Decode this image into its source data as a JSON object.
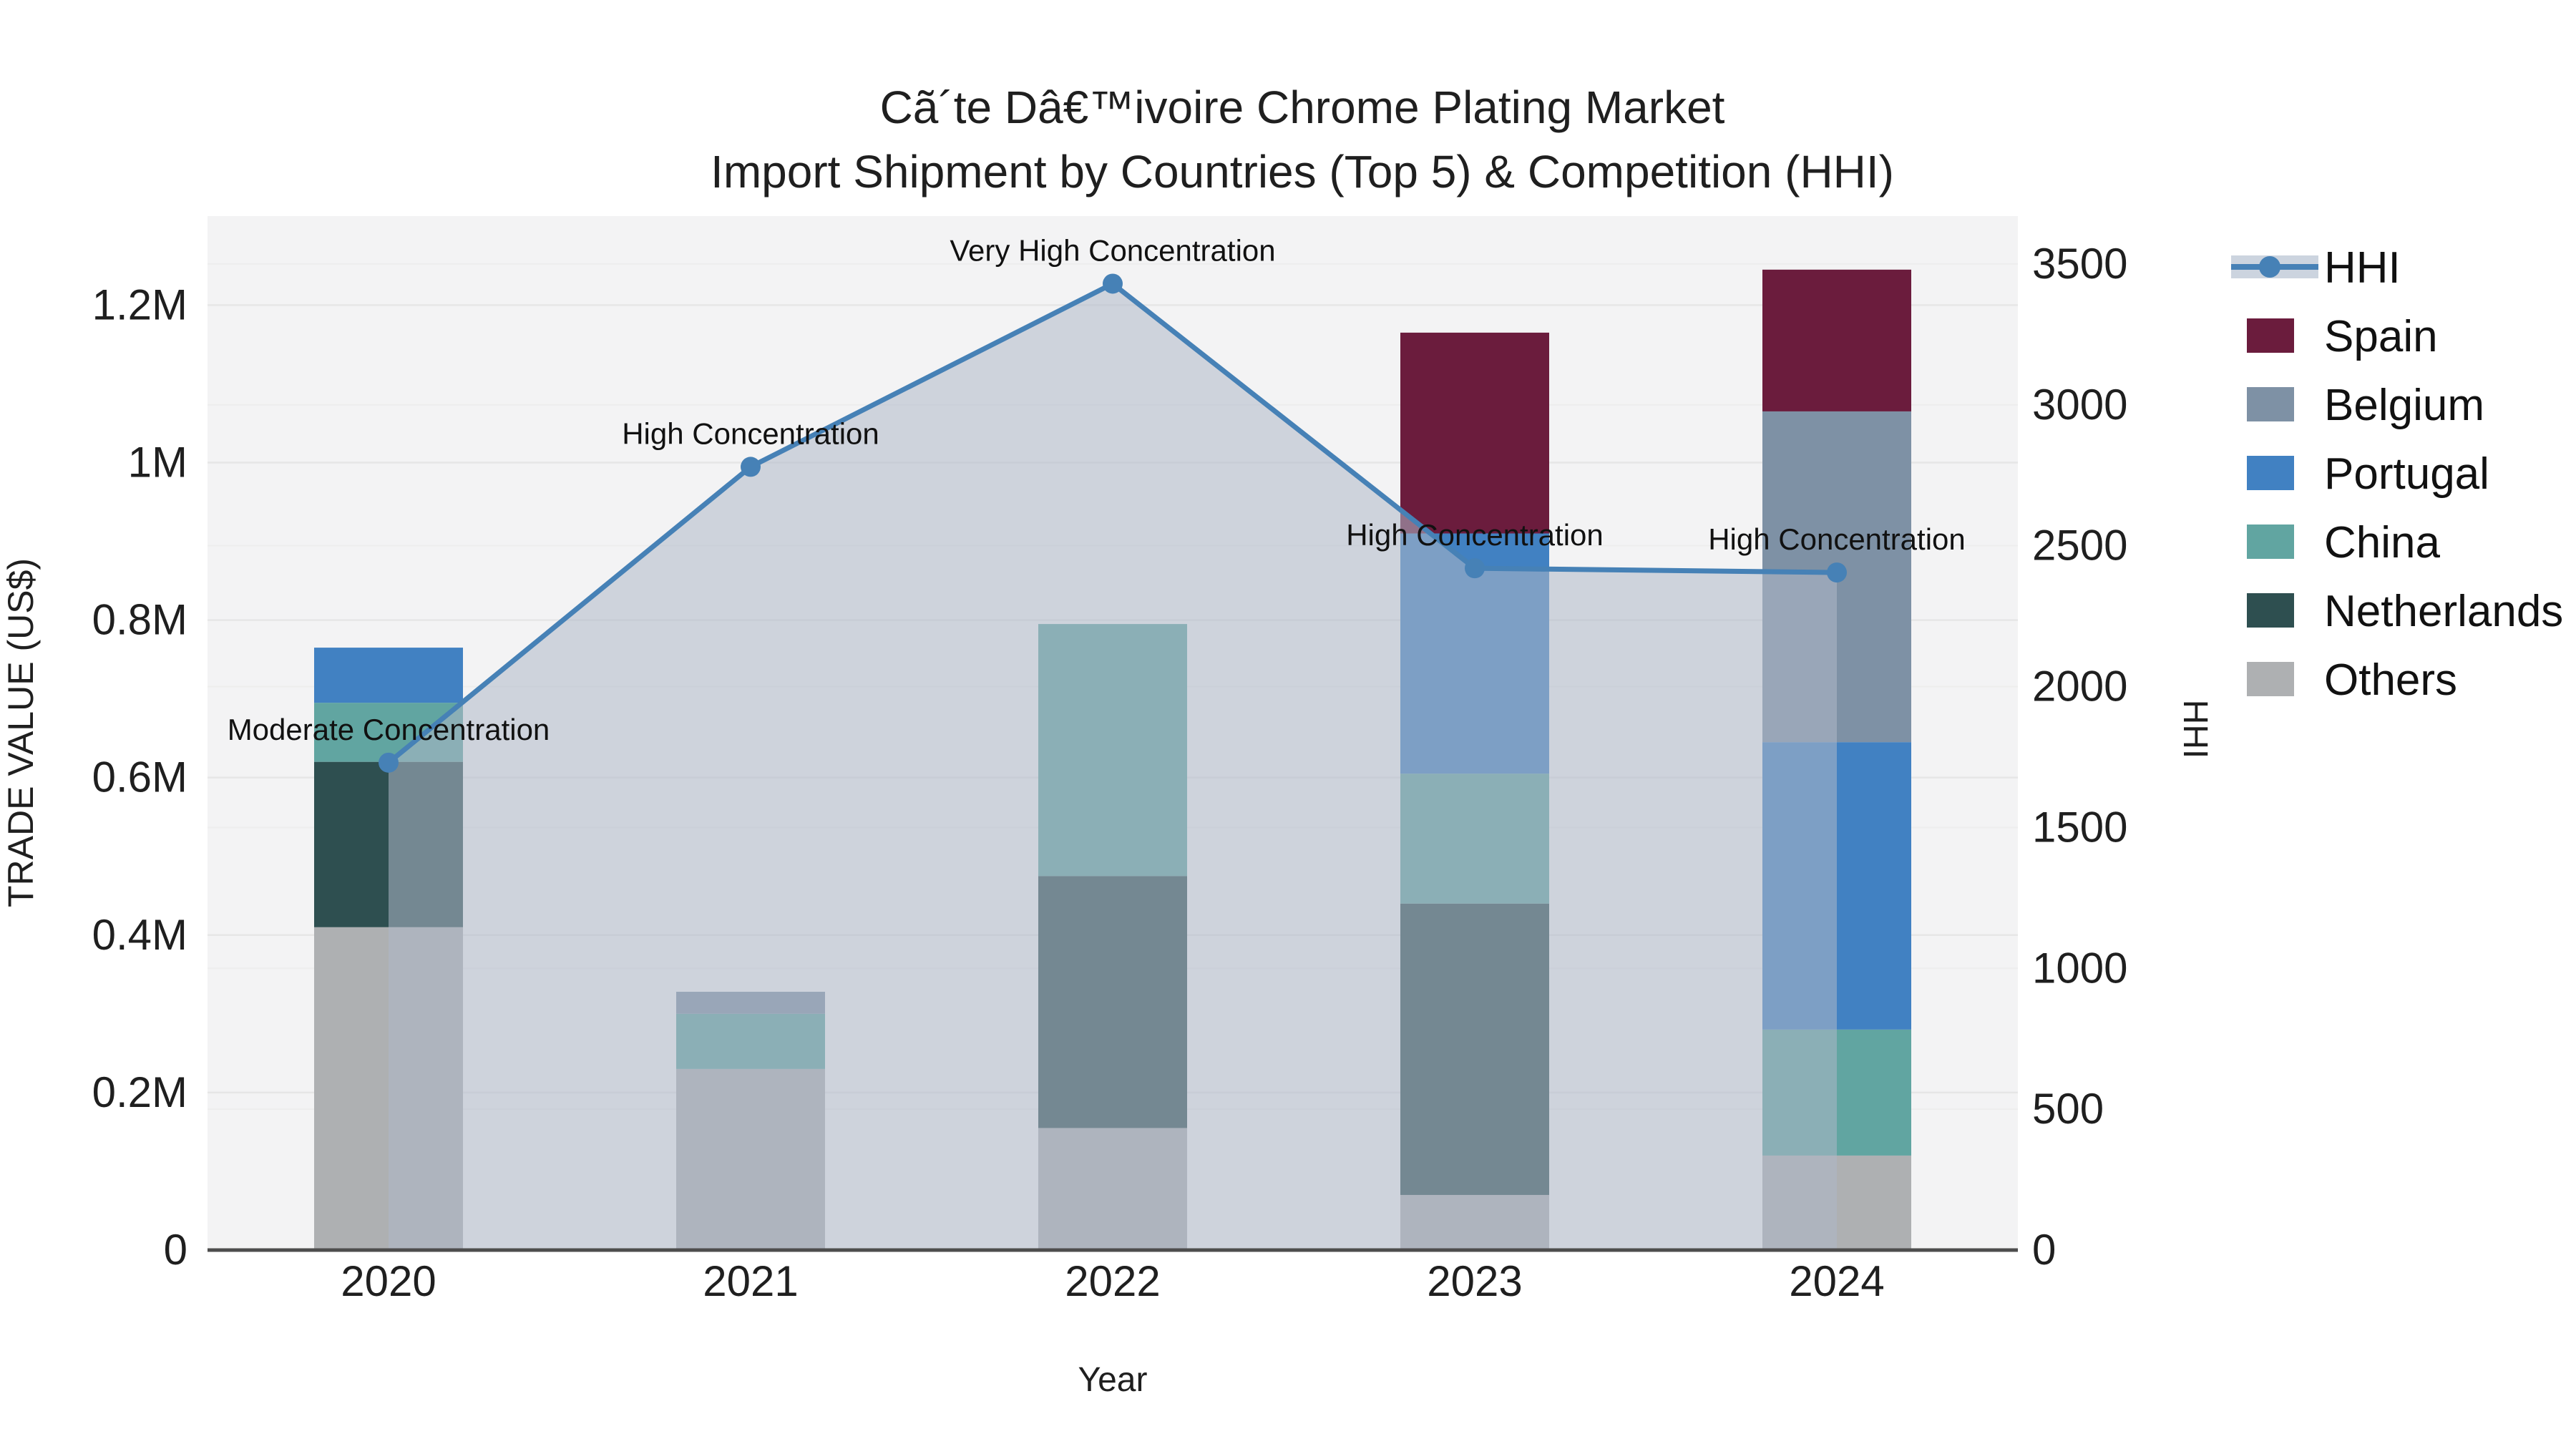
{
  "title": {
    "line1": "Cã´te Dâ€™ivoire Chrome Plating Market",
    "line2": "Import Shipment by Countries (Top 5) & Competition (HHI)"
  },
  "chart_data": {
    "type": "bar",
    "subtype": "stacked-bars-with-hhi-line-area",
    "categories": [
      "2020",
      "2021",
      "2022",
      "2023",
      "2024"
    ],
    "value_unit": "US$",
    "series": [
      {
        "name": "Others",
        "color": "#aeb0b2",
        "values": [
          410000,
          230000,
          155000,
          70000,
          120000
        ]
      },
      {
        "name": "Netherlands",
        "color": "#2e4f50",
        "values": [
          210000,
          0,
          320000,
          370000,
          0
        ]
      },
      {
        "name": "China",
        "color": "#61a5a1",
        "values": [
          75000,
          70000,
          320000,
          165000,
          160000
        ]
      },
      {
        "name": "Portugal",
        "color": "#4181c2",
        "values": [
          70000,
          0,
          0,
          305000,
          365000
        ]
      },
      {
        "name": "Belgium",
        "color": "#7e91a5",
        "values": [
          0,
          28000,
          0,
          0,
          420000
        ]
      },
      {
        "name": "Spain",
        "color": "#6b1c3d",
        "values": [
          0,
          0,
          0,
          255000,
          180000
        ]
      }
    ],
    "line": {
      "name": "HHI",
      "color": "#4681b6",
      "area_fill": "#aeb8c8",
      "area_opacity": 0.55,
      "values": [
        1730,
        2780,
        3430,
        2420,
        2405
      ]
    },
    "annotations": [
      {
        "text": "Moderate Concentration",
        "category": "2020"
      },
      {
        "text": "High Concentration",
        "category": "2021"
      },
      {
        "text": "Very High Concentration",
        "category": "2022"
      },
      {
        "text": "High Concentration",
        "category": "2023"
      },
      {
        "text": "High Concentration",
        "category": "2024"
      }
    ],
    "x_axis": {
      "label": "Year"
    },
    "y_left": {
      "label": "TRADE VALUE (US$)",
      "tick_labels": [
        "0",
        "0.2M",
        "0.4M",
        "0.6M",
        "0.8M",
        "1M",
        "1.2M"
      ],
      "tick_values": [
        0,
        200000,
        400000,
        600000,
        800000,
        1000000,
        1200000
      ],
      "max": 1313000
    },
    "y_right": {
      "label": "HHI",
      "tick_labels": [
        "0",
        "500",
        "1000",
        "1500",
        "2000",
        "2500",
        "3000",
        "3500"
      ],
      "tick_values": [
        0,
        500,
        1000,
        1500,
        2000,
        2500,
        3000,
        3500
      ],
      "max": 3670
    },
    "legend_position": "right",
    "grid": true
  },
  "legend": {
    "items": [
      {
        "label": "HHI",
        "type": "line",
        "color": "#4681b6",
        "band": "#ccd4df"
      },
      {
        "label": "Spain",
        "type": "swatch",
        "color": "#6b1c3d"
      },
      {
        "label": "Belgium",
        "type": "swatch",
        "color": "#7e91a5"
      },
      {
        "label": "Portugal",
        "type": "swatch",
        "color": "#4181c2"
      },
      {
        "label": "China",
        "type": "swatch",
        "color": "#61a5a1"
      },
      {
        "label": "Netherlands",
        "type": "swatch",
        "color": "#2e4f50"
      },
      {
        "label": "Others",
        "type": "swatch",
        "color": "#aeb0b2"
      }
    ]
  },
  "colors": {
    "plot_bg": "#f3f3f4",
    "grid_left": "#e6e6e6",
    "grid_right": "#ededed",
    "axis_line": "#4d4d4d",
    "text": "#1f1f1f"
  }
}
